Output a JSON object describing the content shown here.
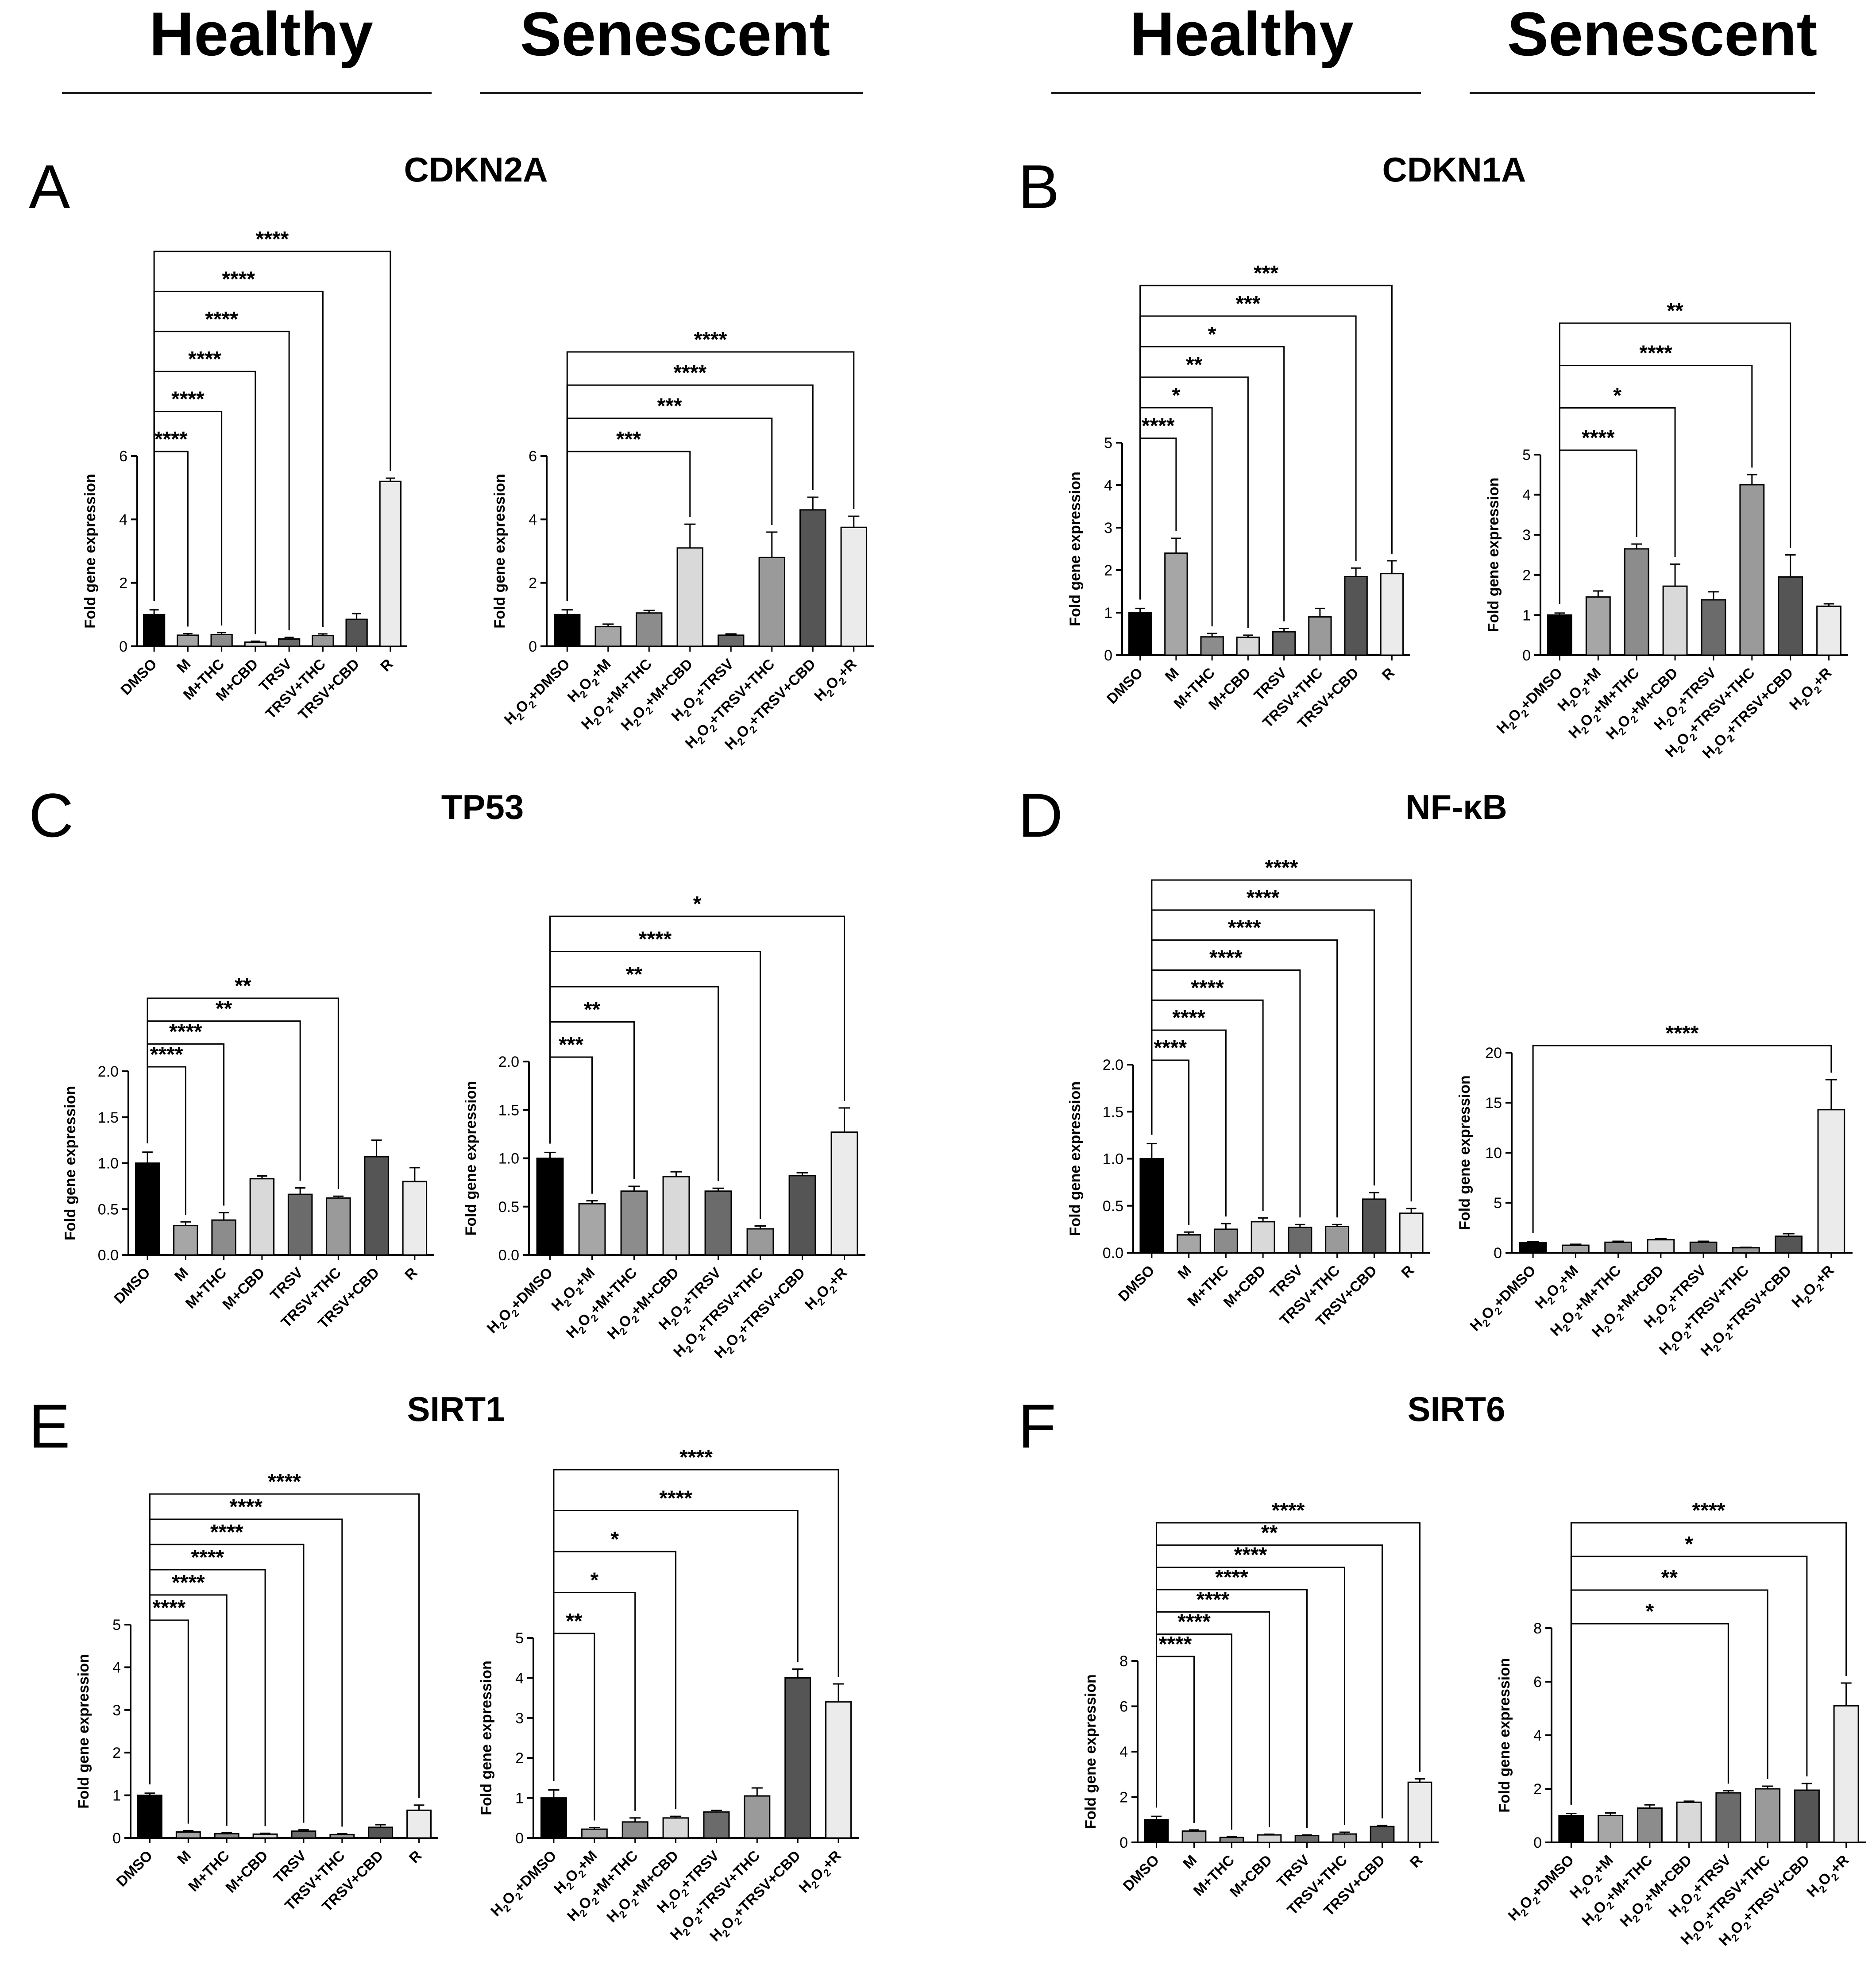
{
  "headers": {
    "left_healthy": "Healthy",
    "left_senescent": "Senescent",
    "right_healthy": "Healthy",
    "right_senescent": "Senescent"
  },
  "colors": {
    "c0": "#000000",
    "c1": "#a6a6a6",
    "c2": "#8c8c8c",
    "c3": "#d9d9d9",
    "c4": "#6b6b6b",
    "c5": "#9a9a9a",
    "c6": "#555555",
    "c7": "#ebebeb"
  },
  "chart_data": [
    {
      "panel": "A",
      "title": "CDKN2A",
      "group": "Healthy",
      "type": "bar",
      "ylabel": "Fold gene expression",
      "ylim": [
        0,
        6
      ],
      "yticks": [
        0,
        2,
        4,
        6
      ],
      "categories": [
        "DMSO",
        "M",
        "M+THC",
        "M+CBD",
        "TRSV",
        "TRSV+THC",
        "TRSV+CBD",
        "R"
      ],
      "values": [
        1.0,
        0.35,
        0.37,
        0.13,
        0.23,
        0.34,
        0.85,
        5.2
      ],
      "errors": [
        0.15,
        0.05,
        0.06,
        0.03,
        0.05,
        0.05,
        0.18,
        0.1
      ],
      "significance": [
        {
          "label": "****",
          "to": "M"
        },
        {
          "label": "****",
          "to": "M+THC"
        },
        {
          "label": "****",
          "to": "M+CBD"
        },
        {
          "label": "****",
          "to": "TRSV"
        },
        {
          "label": "****",
          "to": "TRSV+THC"
        },
        {
          "label": "****",
          "to": "R"
        }
      ]
    },
    {
      "panel": "",
      "title": "",
      "group": "Senescent",
      "type": "bar",
      "ylabel": "Fold gene expression",
      "ylim": [
        0,
        6
      ],
      "yticks": [
        0,
        2,
        4,
        6
      ],
      "categories": [
        "H2O2+DMSO",
        "H2O2+M",
        "H2O2+M+THC",
        "H2O2+M+CBD",
        "H2O2+TRSV",
        "H2O2+TRSV+THC",
        "H2O2+TRSV+CBD",
        "H2O2+R"
      ],
      "values": [
        1.0,
        0.62,
        1.05,
        3.1,
        0.35,
        2.8,
        4.3,
        3.75
      ],
      "errors": [
        0.15,
        0.08,
        0.08,
        0.75,
        0.04,
        0.8,
        0.4,
        0.35
      ],
      "significance": [
        {
          "label": "***",
          "to": "H2O2+M+CBD"
        },
        {
          "label": "***",
          "to": "H2O2+TRSV+THC"
        },
        {
          "label": "****",
          "to": "H2O2+TRSV+CBD"
        },
        {
          "label": "****",
          "to": "H2O2+R"
        }
      ]
    },
    {
      "panel": "B",
      "title": "CDKN1A",
      "group": "Healthy",
      "type": "bar",
      "ylabel": "Fold gene expression",
      "ylim": [
        0,
        5
      ],
      "yticks": [
        0,
        1,
        2,
        3,
        4,
        5
      ],
      "categories": [
        "DMSO",
        "M",
        "M+THC",
        "M+CBD",
        "TRSV",
        "TRSV+THC",
        "TRSV+CBD",
        "R"
      ],
      "values": [
        1.0,
        2.4,
        0.43,
        0.42,
        0.55,
        0.9,
        1.85,
        1.92
      ],
      "errors": [
        0.1,
        0.35,
        0.08,
        0.05,
        0.08,
        0.2,
        0.2,
        0.3
      ],
      "significance": [
        {
          "label": "****",
          "to": "M"
        },
        {
          "label": "*",
          "to": "M+THC"
        },
        {
          "label": "**",
          "to": "M+CBD"
        },
        {
          "label": "*",
          "to": "TRSV"
        },
        {
          "label": "***",
          "to": "TRSV+CBD"
        },
        {
          "label": "***",
          "to": "R"
        }
      ]
    },
    {
      "panel": "",
      "title": "",
      "group": "Senescent",
      "type": "bar",
      "ylabel": "Fold gene expression",
      "ylim": [
        0,
        5
      ],
      "yticks": [
        0,
        1,
        2,
        3,
        4,
        5
      ],
      "categories": [
        "H2O2+DMSO",
        "H2O2+M",
        "H2O2+M+THC",
        "H2O2+M+CBD",
        "H2O2+TRSV",
        "H2O2+TRSV+THC",
        "H2O2+TRSV+CBD",
        "H2O2+R"
      ],
      "values": [
        1.0,
        1.45,
        2.65,
        1.72,
        1.38,
        4.25,
        1.95,
        1.22
      ],
      "errors": [
        0.05,
        0.15,
        0.12,
        0.55,
        0.2,
        0.25,
        0.55,
        0.06
      ],
      "significance": [
        {
          "label": "****",
          "to": "H2O2+M+THC"
        },
        {
          "label": "*",
          "to": "H2O2+M+CBD"
        },
        {
          "label": "****",
          "to": "H2O2+TRSV+THC"
        },
        {
          "label": "**",
          "to": "H2O2+TRSV+CBD"
        }
      ]
    },
    {
      "panel": "C",
      "title": "TP53",
      "group": "Healthy",
      "type": "bar",
      "ylabel": "Fold gene expression",
      "ylim": [
        0,
        2.0
      ],
      "yticks": [
        0.0,
        0.5,
        1.0,
        1.5,
        2.0
      ],
      "categories": [
        "DMSO",
        "M",
        "M+THC",
        "M+CBD",
        "TRSV",
        "TRSV+THC",
        "TRSV+CBD",
        "R"
      ],
      "values": [
        1.0,
        0.32,
        0.38,
        0.83,
        0.66,
        0.62,
        1.07,
        0.8
      ],
      "errors": [
        0.12,
        0.04,
        0.08,
        0.03,
        0.07,
        0.02,
        0.18,
        0.15
      ],
      "significance": [
        {
          "label": "****",
          "to": "M"
        },
        {
          "label": "****",
          "to": "M+THC"
        },
        {
          "label": "**",
          "to": "TRSV"
        },
        {
          "label": "**",
          "to": "TRSV+THC"
        }
      ]
    },
    {
      "panel": "",
      "title": "",
      "group": "Senescent",
      "type": "bar",
      "ylabel": "Fold gene expression",
      "ylim": [
        0,
        2.0
      ],
      "yticks": [
        0.0,
        0.5,
        1.0,
        1.5,
        2.0
      ],
      "categories": [
        "H2O2+DMSO",
        "H2O2+M",
        "H2O2+M+THC",
        "H2O2+M+CBD",
        "H2O2+TRSV",
        "H2O2+TRSV+THC",
        "H2O2+TRSV+CBD",
        "H2O2+R"
      ],
      "values": [
        1.0,
        0.53,
        0.66,
        0.81,
        0.66,
        0.27,
        0.82,
        1.27
      ],
      "errors": [
        0.06,
        0.03,
        0.05,
        0.05,
        0.03,
        0.03,
        0.03,
        0.25
      ],
      "significance": [
        {
          "label": "***",
          "to": "H2O2+M"
        },
        {
          "label": "**",
          "to": "H2O2+M+THC"
        },
        {
          "label": "**",
          "to": "H2O2+TRSV"
        },
        {
          "label": "****",
          "to": "H2O2+TRSV+THC"
        },
        {
          "label": "*",
          "to": "H2O2+R"
        }
      ]
    },
    {
      "panel": "D",
      "title": "NF-κB",
      "group": "Healthy",
      "type": "bar",
      "ylabel": "Fold gene expression",
      "ylim": [
        0,
        2.0
      ],
      "yticks": [
        0.0,
        0.5,
        1.0,
        1.5,
        2.0
      ],
      "categories": [
        "DMSO",
        "M",
        "M+THC",
        "M+CBD",
        "TRSV",
        "TRSV+THC",
        "TRSV+CBD",
        "R"
      ],
      "values": [
        1.0,
        0.19,
        0.25,
        0.33,
        0.27,
        0.28,
        0.57,
        0.42
      ],
      "errors": [
        0.16,
        0.03,
        0.06,
        0.04,
        0.03,
        0.02,
        0.07,
        0.05
      ],
      "significance": [
        {
          "label": "****",
          "to": "M"
        },
        {
          "label": "****",
          "to": "M+THC"
        },
        {
          "label": "****",
          "to": "M+CBD"
        },
        {
          "label": "****",
          "to": "TRSV"
        },
        {
          "label": "****",
          "to": "TRSV+THC"
        },
        {
          "label": "****",
          "to": "TRSV+CBD"
        },
        {
          "label": "****",
          "to": "R"
        }
      ]
    },
    {
      "panel": "",
      "title": "",
      "group": "Senescent",
      "type": "bar",
      "ylabel": "Fold gene expression",
      "ylim": [
        0,
        20
      ],
      "yticks": [
        0,
        5,
        10,
        15,
        20
      ],
      "categories": [
        "H2O2+DMSO",
        "H2O2+M",
        "H2O2+M+THC",
        "H2O2+M+CBD",
        "H2O2+TRSV",
        "H2O2+TRSV+THC",
        "H2O2+TRSV+CBD",
        "H2O2+R"
      ],
      "values": [
        1.0,
        0.75,
        1.05,
        1.3,
        1.05,
        0.5,
        1.65,
        14.3
      ],
      "errors": [
        0.1,
        0.1,
        0.1,
        0.1,
        0.1,
        0.05,
        0.25,
        3.0
      ],
      "significance": [
        {
          "label": "****",
          "to": "H2O2+R"
        }
      ]
    },
    {
      "panel": "E",
      "title": "SIRT1",
      "group": "Healthy",
      "type": "bar",
      "ylabel": "Fold gene expression",
      "ylim": [
        0,
        5
      ],
      "yticks": [
        0,
        1,
        2,
        3,
        4,
        5
      ],
      "categories": [
        "DMSO",
        "M",
        "M+THC",
        "M+CBD",
        "TRSV",
        "TRSV+THC",
        "TRSV+CBD",
        "R"
      ],
      "values": [
        1.0,
        0.14,
        0.1,
        0.09,
        0.16,
        0.08,
        0.25,
        0.65
      ],
      "errors": [
        0.05,
        0.03,
        0.02,
        0.02,
        0.03,
        0.02,
        0.06,
        0.12
      ],
      "significance": [
        {
          "label": "****",
          "to": "M"
        },
        {
          "label": "****",
          "to": "M+THC"
        },
        {
          "label": "****",
          "to": "M+CBD"
        },
        {
          "label": "****",
          "to": "TRSV"
        },
        {
          "label": "****",
          "to": "TRSV+THC"
        },
        {
          "label": "****",
          "to": "R"
        }
      ]
    },
    {
      "panel": "",
      "title": "",
      "group": "Senescent",
      "type": "bar",
      "ylabel": "Fold gene expression",
      "ylim": [
        0,
        5
      ],
      "yticks": [
        0,
        1,
        2,
        3,
        4,
        5
      ],
      "categories": [
        "H2O2+DMSO",
        "H2O2+M",
        "H2O2+M+THC",
        "H2O2+M+CBD",
        "H2O2+TRSV",
        "H2O2+TRSV+THC",
        "H2O2+TRSV+CBD",
        "H2O2+R"
      ],
      "values": [
        1.0,
        0.22,
        0.4,
        0.5,
        0.65,
        1.05,
        4.0,
        3.4
      ],
      "errors": [
        0.2,
        0.04,
        0.1,
        0.04,
        0.04,
        0.2,
        0.22,
        0.45
      ],
      "significance": [
        {
          "label": "**",
          "to": "H2O2+M"
        },
        {
          "label": "*",
          "to": "H2O2+M+THC"
        },
        {
          "label": "*",
          "to": "H2O2+M+CBD"
        },
        {
          "label": "****",
          "to": "H2O2+TRSV+CBD"
        },
        {
          "label": "****",
          "to": "H2O2+R"
        }
      ]
    },
    {
      "panel": "F",
      "title": "SIRT6",
      "group": "Healthy",
      "type": "bar",
      "ylabel": "Fold gene expression",
      "ylim": [
        0,
        8
      ],
      "yticks": [
        0,
        2,
        4,
        6,
        8
      ],
      "categories": [
        "DMSO",
        "M",
        "M+THC",
        "M+CBD",
        "TRSV",
        "TRSV+THC",
        "TRSV+CBD",
        "R"
      ],
      "values": [
        1.0,
        0.5,
        0.22,
        0.33,
        0.3,
        0.37,
        0.7,
        2.65
      ],
      "errors": [
        0.15,
        0.05,
        0.03,
        0.03,
        0.03,
        0.08,
        0.05,
        0.15
      ],
      "significance": [
        {
          "label": "****",
          "to": "M"
        },
        {
          "label": "****",
          "to": "M+THC"
        },
        {
          "label": "****",
          "to": "M+CBD"
        },
        {
          "label": "****",
          "to": "TRSV"
        },
        {
          "label": "****",
          "to": "TRSV+THC"
        },
        {
          "label": "**",
          "to": "TRSV+CBD"
        },
        {
          "label": "****",
          "to": "R"
        }
      ]
    },
    {
      "panel": "",
      "title": "",
      "group": "Senescent",
      "type": "bar",
      "ylabel": "Fold gene expression",
      "ylim": [
        0,
        8
      ],
      "yticks": [
        0,
        2,
        4,
        6,
        8
      ],
      "categories": [
        "H2O2+DMSO",
        "H2O2+M",
        "H2O2+M+THC",
        "H2O2+M+CBD",
        "H2O2+TRSV",
        "H2O2+TRSV+THC",
        "H2O2+TRSV+CBD",
        "H2O2+R"
      ],
      "values": [
        1.0,
        1.0,
        1.28,
        1.5,
        1.85,
        2.0,
        1.95,
        5.1
      ],
      "errors": [
        0.08,
        0.1,
        0.12,
        0.04,
        0.08,
        0.1,
        0.25,
        0.85
      ],
      "significance": [
        {
          "label": "*",
          "to": "H2O2+TRSV"
        },
        {
          "label": "**",
          "to": "H2O2+TRSV+THC"
        },
        {
          "label": "*",
          "to": "H2O2+TRSV+CBD"
        },
        {
          "label": "****",
          "to": "H2O2+R"
        }
      ]
    }
  ]
}
